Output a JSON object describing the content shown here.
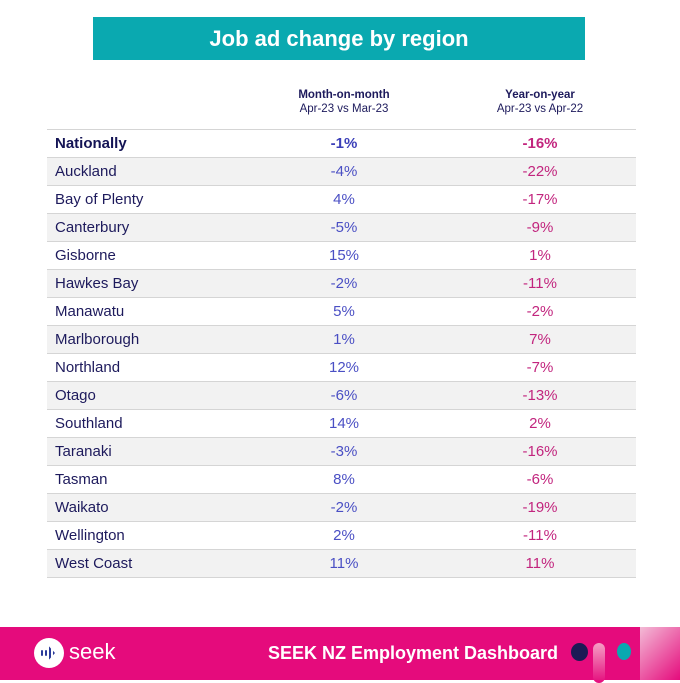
{
  "title": "Job ad change by region",
  "columns": {
    "mom": {
      "label": "Month-on-month",
      "sub": "Apr-23 vs Mar-23"
    },
    "yoy": {
      "label": "Year-on-year",
      "sub": "Apr-23 vs Apr-22"
    }
  },
  "rows": [
    {
      "region": "Nationally",
      "mom": "-1%",
      "yoy": "-16%"
    },
    {
      "region": "Auckland",
      "mom": "-4%",
      "yoy": "-22%"
    },
    {
      "region": "Bay of Plenty",
      "mom": "4%",
      "yoy": "-17%"
    },
    {
      "region": "Canterbury",
      "mom": "-5%",
      "yoy": "-9%"
    },
    {
      "region": "Gisborne",
      "mom": "15%",
      "yoy": "1%"
    },
    {
      "region": "Hawkes Bay",
      "mom": "-2%",
      "yoy": "-11%"
    },
    {
      "region": "Manawatu",
      "mom": "5%",
      "yoy": "-2%"
    },
    {
      "region": "Marlborough",
      "mom": "1%",
      "yoy": "7%"
    },
    {
      "region": "Northland",
      "mom": "12%",
      "yoy": "-7%"
    },
    {
      "region": "Otago",
      "mom": "-6%",
      "yoy": "-13%"
    },
    {
      "region": "Southland",
      "mom": "14%",
      "yoy": "2%"
    },
    {
      "region": "Taranaki",
      "mom": "-3%",
      "yoy": "-16%"
    },
    {
      "region": "Tasman",
      "mom": "8%",
      "yoy": "-6%"
    },
    {
      "region": "Waikato",
      "mom": "-2%",
      "yoy": "-19%"
    },
    {
      "region": "Wellington",
      "mom": "2%",
      "yoy": "-11%"
    },
    {
      "region": "West Coast",
      "mom": "11%",
      "yoy": "11%"
    }
  ],
  "footer": {
    "logo": "seek",
    "title": "SEEK NZ Employment Dashboard"
  },
  "colors": {
    "teal": "#0aa9b0",
    "pink": "#e50b7c",
    "navy": "#1d1a5c"
  }
}
